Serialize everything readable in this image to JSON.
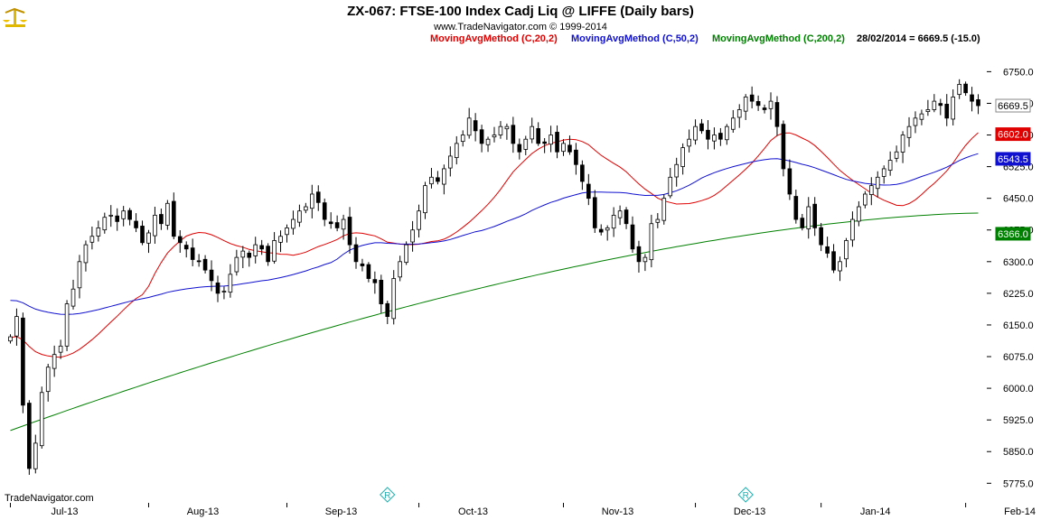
{
  "header": {
    "title": "ZX-067:  FTSE-100 Index Cadj Liq @ LIFFE  (Daily bars)",
    "subtitle": "www.TradeNavigator.com © 1999-2014",
    "legend": [
      {
        "label": "MovingAvgMethod (C,20,2)",
        "color": "#e00000"
      },
      {
        "label": "MovingAvgMethod (C,50,2)",
        "color": "#1010d0"
      },
      {
        "label": "MovingAvgMethod (C,200,2)",
        "color": "#008000"
      }
    ],
    "last_bar": "28/02/2014 = 6669.5 (-15.0)"
  },
  "footer": {
    "brand": "TradeNavigator.com"
  },
  "logo_icon": "scales-logo-icon",
  "r_marker_icon": "registered-r-diamond-icon",
  "chart_data": {
    "type": "candlestick",
    "title": "ZX-067:  FTSE-100 Index Cadj Liq @ LIFFE  (Daily bars)",
    "ylim": [
      5750,
      6800
    ],
    "y_ticks": [
      "6750.0",
      "6675.0",
      "6600.0",
      "6525.0",
      "6450.0",
      "6375.0",
      "6300.0",
      "6225.0",
      "6150.0",
      "6075.0",
      "6000.0",
      "5925.0",
      "5850.0",
      "5775.0"
    ],
    "month_labels": [
      "Jul-13",
      "Aug-13",
      "Sep-13",
      "Oct-13",
      "Nov-13",
      "Dec-13",
      "Jan-14",
      "Feb-14"
    ],
    "month_start_index": [
      0,
      22,
      44,
      65,
      88,
      109,
      129,
      152
    ],
    "r_marker_index": [
      60,
      117
    ],
    "price_tags": [
      {
        "label": "6669.5",
        "value": 6669.5,
        "bg": "#ffffff",
        "fg": "#000000"
      },
      {
        "label": "6602.0",
        "value": 6602.0,
        "bg": "#e00000",
        "fg": "#ffffff"
      },
      {
        "label": "6543.5",
        "value": 6543.5,
        "bg": "#1010d0",
        "fg": "#ffffff"
      },
      {
        "label": "6366.0",
        "value": 6366.0,
        "bg": "#008000",
        "fg": "#ffffff"
      }
    ],
    "closes": [
      6122,
      6170,
      5960,
      5810,
      5870,
      5990,
      6050,
      6080,
      6100,
      6200,
      6235,
      6300,
      6340,
      6360,
      6380,
      6405,
      6410,
      6395,
      6420,
      6400,
      6380,
      6345,
      6368,
      6410,
      6390,
      6438,
      6360,
      6345,
      6330,
      6305,
      6300,
      6280,
      6255,
      6225,
      6230,
      6270,
      6310,
      6325,
      6310,
      6340,
      6330,
      6300,
      6350,
      6360,
      6380,
      6400,
      6420,
      6430,
      6460,
      6440,
      6400,
      6390,
      6380,
      6400,
      6340,
      6300,
      6290,
      6260,
      6250,
      6200,
      6170,
      6260,
      6300,
      6340,
      6375,
      6420,
      6480,
      6500,
      6490,
      6520,
      6550,
      6580,
      6600,
      6640,
      6610,
      6580,
      6590,
      6600,
      6620,
      6620,
      6580,
      6560,
      6590,
      6620,
      6580,
      6580,
      6600,
      6560,
      6580,
      6560,
      6530,
      6490,
      6450,
      6380,
      6370,
      6380,
      6410,
      6420,
      6390,
      6330,
      6300,
      6310,
      6390,
      6400,
      6450,
      6500,
      6530,
      6570,
      6590,
      6620,
      6610,
      6590,
      6600,
      6590,
      6620,
      6640,
      6660,
      6690,
      6680,
      6670,
      6660,
      6680,
      6620,
      6520,
      6460,
      6400,
      6380,
      6430,
      6380,
      6340,
      6320,
      6280,
      6300,
      6350,
      6400,
      6430,
      6460,
      6480,
      6500,
      6520,
      6540,
      6560,
      6600,
      6620,
      6640,
      6650,
      6660,
      6680,
      6670,
      6640,
      6690,
      6720,
      6700,
      6680,
      6669.5
    ],
    "series": [
      {
        "name": "MovingAvgMethod (C,20,2)",
        "color": "#e00000",
        "period": 20
      },
      {
        "name": "MovingAvgMethod (C,50,2)",
        "color": "#1010d0",
        "period": 50
      },
      {
        "name": "MovingAvgMethod (C,200,2)",
        "color": "#008000",
        "period": 200
      }
    ],
    "grid": false
  }
}
